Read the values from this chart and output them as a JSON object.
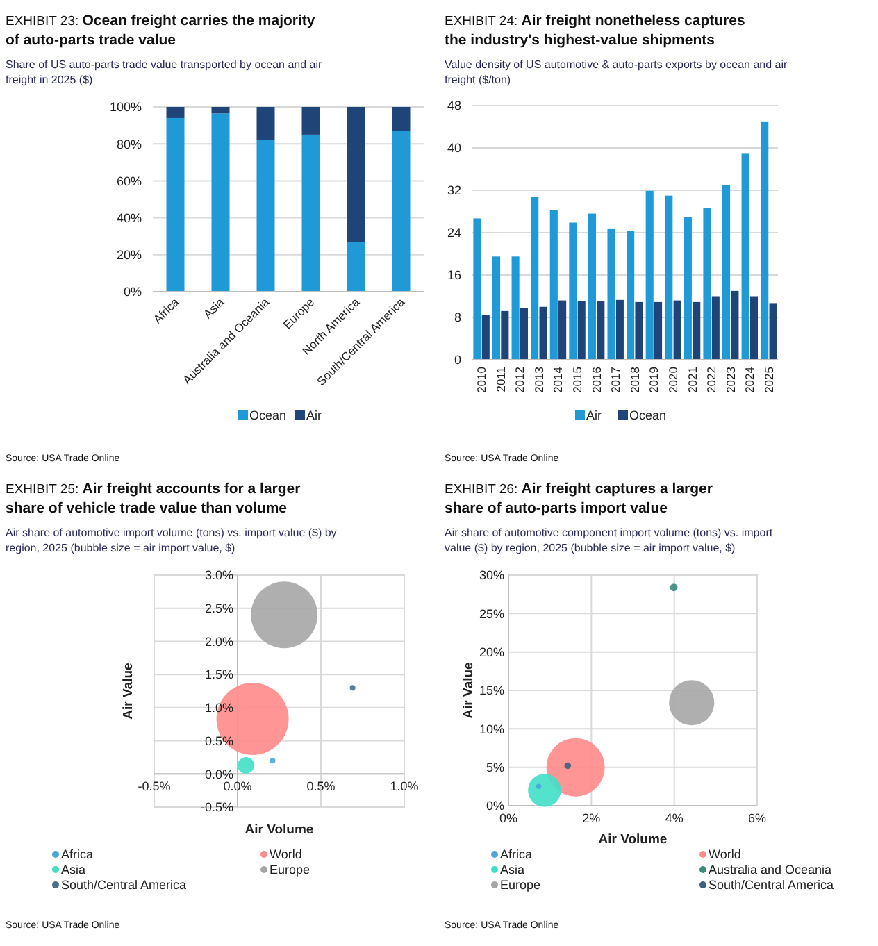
{
  "chart_data": [
    {
      "type": "bar",
      "stacked": true,
      "title": "EXHIBIT 23: Ocean freight carries the majority of auto-parts trade value",
      "subtitle": "Share of US auto-parts trade value transported by ocean and air freight in 2025 ($)",
      "categories": [
        "Africa",
        "Asia",
        "Australia and Oceania",
        "Europe",
        "North America",
        "South/Central America"
      ],
      "series": [
        {
          "name": "Ocean",
          "color": "#1f9ad6",
          "values": [
            94,
            96.5,
            82,
            85,
            27,
            87
          ]
        },
        {
          "name": "Air",
          "color": "#1f4478",
          "values": [
            6,
            3.5,
            18,
            15,
            73,
            13
          ]
        }
      ],
      "ylim": [
        0,
        100
      ],
      "yticks": [
        {
          "value": 0,
          "label": "0%"
        },
        {
          "value": 20,
          "label": "20%"
        },
        {
          "value": 40,
          "label": "40%"
        },
        {
          "value": 60,
          "label": "60%"
        },
        {
          "value": 80,
          "label": "80%"
        },
        {
          "value": 100,
          "label": "100%"
        }
      ],
      "grid": "y",
      "legend": "bottom",
      "annotations": [
        "Source: USA Trade Online"
      ]
    },
    {
      "type": "bar",
      "title": "EXHIBIT 24: Air freight nonetheless captures the industry's highest-value shipments",
      "subtitle": "Value density of US automotive & auto-parts exports by ocean and air freight ($/ton)",
      "categories": [
        "2010",
        "2011",
        "2012",
        "2013",
        "2014",
        "2015",
        "2016",
        "2017",
        "2018",
        "2019",
        "2020",
        "2021",
        "2022",
        "2023",
        "2024",
        "2025"
      ],
      "series": [
        {
          "name": "Air",
          "color": "#1f9ad6",
          "values": [
            26.7,
            19.5,
            19.5,
            30.8,
            28.2,
            25.9,
            27.6,
            24.8,
            24.3,
            31.9,
            31,
            27,
            28.7,
            33,
            38.9,
            45
          ]
        },
        {
          "name": "Ocean",
          "color": "#1f4478",
          "values": [
            8.5,
            9.2,
            9.8,
            10,
            11.2,
            11.1,
            11.1,
            11.3,
            10.9,
            10.9,
            11.2,
            10.9,
            12,
            13,
            12,
            10.7
          ]
        }
      ],
      "ylim": [
        0,
        48
      ],
      "yticks": [
        0,
        8,
        16,
        24,
        32,
        40,
        48
      ],
      "grid": "y",
      "legend": "bottom",
      "annotations": [
        "Source: USA Trade Online"
      ]
    },
    {
      "type": "bubble",
      "title": "EXHIBIT 25: Air freight accounts for a larger share of vehicle trade value than volume",
      "subtitle": "Air share of automotive import volume (tons) vs. import value ($) by region, 2025 (bubble size = air import value, $)",
      "xlabel": "Air Volume",
      "ylabel": "Air Value",
      "series": [
        {
          "name": "Africa",
          "color": "#4aa6d8",
          "x": [
            0.21
          ],
          "values": [
            0.2
          ],
          "sizes": [
            0.006
          ]
        },
        {
          "name": "World",
          "color": "#ff8a8a",
          "x": [
            0.09
          ],
          "values": [
            0.83
          ],
          "sizes": [
            1
          ]
        },
        {
          "name": "Asia",
          "color": "#40e0c8",
          "x": [
            0.05
          ],
          "values": [
            0.13
          ],
          "sizes": [
            0.053
          ]
        },
        {
          "name": "Europe",
          "color": "#a6a6a6",
          "x": [
            0.28
          ],
          "values": [
            2.4
          ],
          "sizes": [
            0.85
          ]
        },
        {
          "name": "South/Central America",
          "color": "#4a6f8a",
          "x": [
            0.69
          ],
          "values": [
            1.3
          ],
          "sizes": [
            0.006
          ]
        }
      ],
      "xlim": [
        -0.5,
        1
      ],
      "xticks": [
        {
          "value": -0.5,
          "label": "-0.5%"
        },
        {
          "value": 0,
          "label": "0.0%"
        },
        {
          "value": 0.5,
          "label": "0.5%"
        },
        {
          "value": 1,
          "label": "1.0%"
        }
      ],
      "ylim": [
        -0.5,
        3
      ],
      "yticks": [
        {
          "value": -0.5,
          "label": "-0.5%"
        },
        {
          "value": 0,
          "label": "0.0%"
        },
        {
          "value": 0.5,
          "label": "0.5%"
        },
        {
          "value": 1,
          "label": "1.0%"
        },
        {
          "value": 1.5,
          "label": "1.5%"
        },
        {
          "value": 2,
          "label": "2.0%"
        },
        {
          "value": 2.5,
          "label": "2.5%"
        },
        {
          "value": 3,
          "label": "3.0%"
        }
      ],
      "grid": true,
      "legend": "bottom",
      "annotations": [
        "Source: USA Trade Online"
      ]
    },
    {
      "type": "bubble",
      "title": "EXHIBIT 26: Air freight captures a larger share of auto-parts import value",
      "subtitle": "Air share of automotive component import volume (tons) vs. import value ($) by region, 2025 (bubble size = air import value, $)",
      "xlabel": "Air Volume",
      "ylabel": "Air Value",
      "series": [
        {
          "name": "Africa",
          "color": "#4aa6d8",
          "x": [
            0.73
          ],
          "values": [
            2.5
          ],
          "sizes": [
            0.008
          ]
        },
        {
          "name": "World",
          "color": "#ff8a8a",
          "x": [
            1.62
          ],
          "values": [
            5
          ],
          "sizes": [
            1
          ]
        },
        {
          "name": "Asia",
          "color": "#40e0c8",
          "x": [
            0.87
          ],
          "values": [
            2
          ],
          "sizes": [
            0.32
          ]
        },
        {
          "name": "Australia and Oceania",
          "color": "#3a8a7a",
          "x": [
            3.99
          ],
          "values": [
            28.4
          ],
          "sizes": [
            0.017
          ]
        },
        {
          "name": "Europe",
          "color": "#a6a6a6",
          "x": [
            4.42
          ],
          "values": [
            13.4
          ],
          "sizes": [
            0.6
          ]
        },
        {
          "name": "South/Central America",
          "color": "#3f5f80",
          "x": [
            1.43
          ],
          "values": [
            5.2
          ],
          "sizes": [
            0.013
          ]
        }
      ],
      "xlim": [
        0,
        6
      ],
      "xticks": [
        {
          "value": 0,
          "label": "0%"
        },
        {
          "value": 2,
          "label": "2%"
        },
        {
          "value": 4,
          "label": "4%"
        },
        {
          "value": 6,
          "label": "6%"
        }
      ],
      "ylim": [
        0,
        30
      ],
      "yticks": [
        {
          "value": 0,
          "label": "0%"
        },
        {
          "value": 5,
          "label": "5%"
        },
        {
          "value": 10,
          "label": "10%"
        },
        {
          "value": 15,
          "label": "15%"
        },
        {
          "value": 20,
          "label": "20%"
        },
        {
          "value": 25,
          "label": "25%"
        },
        {
          "value": 30,
          "label": "30%"
        }
      ],
      "grid": true,
      "legend": "bottom",
      "annotations": [
        "Source: USA Trade Online"
      ]
    }
  ]
}
